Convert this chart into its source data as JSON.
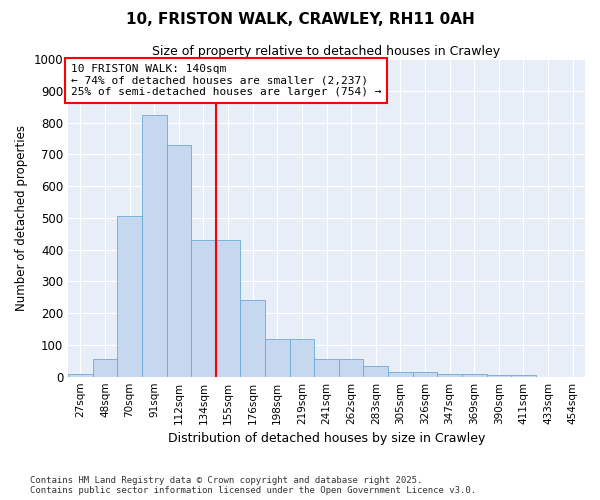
{
  "title": "10, FRISTON WALK, CRAWLEY, RH11 0AH",
  "subtitle": "Size of property relative to detached houses in Crawley",
  "xlabel": "Distribution of detached houses by size in Crawley",
  "ylabel": "Number of detached properties",
  "categories": [
    "27sqm",
    "48sqm",
    "70sqm",
    "91sqm",
    "112sqm",
    "134sqm",
    "155sqm",
    "176sqm",
    "198sqm",
    "219sqm",
    "241sqm",
    "262sqm",
    "283sqm",
    "305sqm",
    "326sqm",
    "347sqm",
    "369sqm",
    "390sqm",
    "411sqm",
    "433sqm",
    "454sqm"
  ],
  "values": [
    8,
    55,
    505,
    825,
    730,
    430,
    430,
    240,
    118,
    118,
    55,
    55,
    35,
    15,
    15,
    10,
    10,
    5,
    5,
    0,
    0
  ],
  "bar_color": "#c5d8f0",
  "bar_edge_color": "#6aaad4",
  "red_line_index": 5,
  "annotation_title": "10 FRISTON WALK: 140sqm",
  "annotation_line1": "← 74% of detached houses are smaller (2,237)",
  "annotation_line2": "25% of semi-detached houses are larger (754) →",
  "ylim": [
    0,
    1000
  ],
  "yticks": [
    0,
    100,
    200,
    300,
    400,
    500,
    600,
    700,
    800,
    900,
    1000
  ],
  "footer_line1": "Contains HM Land Registry data © Crown copyright and database right 2025.",
  "footer_line2": "Contains public sector information licensed under the Open Government Licence v3.0.",
  "fig_background": "#ffffff",
  "plot_background": "#e8eef8"
}
